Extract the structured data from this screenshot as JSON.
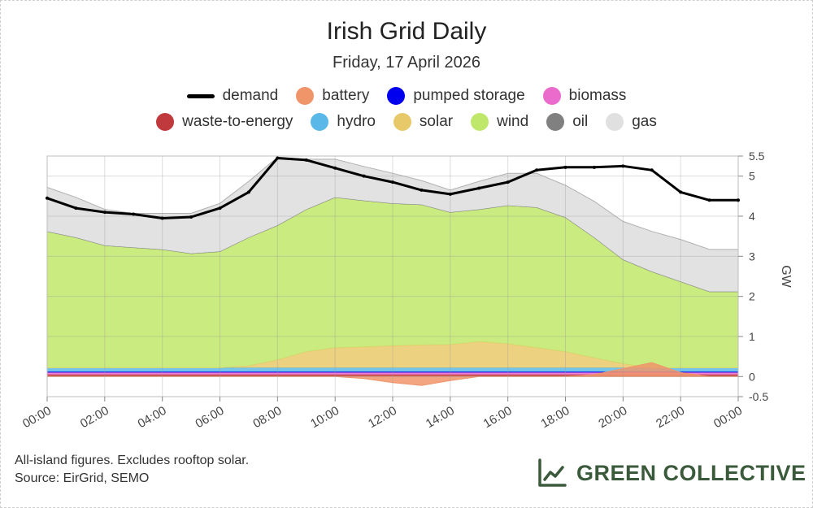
{
  "header": {
    "title": "Irish Grid Daily",
    "subtitle": "Friday, 17 April 2026"
  },
  "legend": [
    {
      "key": "demand",
      "label": "demand",
      "color": "#000000",
      "kind": "line"
    },
    {
      "key": "battery",
      "label": "battery",
      "color": "#f0956a",
      "kind": "dot"
    },
    {
      "key": "pumped",
      "label": "pumped storage",
      "color": "#0000ee",
      "kind": "dot"
    },
    {
      "key": "biomass",
      "label": "biomass",
      "color": "#ea6bcb",
      "kind": "dot"
    },
    {
      "key": "waste",
      "label": "waste-to-energy",
      "color": "#c0393c",
      "kind": "dot"
    },
    {
      "key": "hydro",
      "label": "hydro",
      "color": "#5ab8e8",
      "kind": "dot"
    },
    {
      "key": "solar",
      "label": "solar",
      "color": "#e7c96a",
      "kind": "dot"
    },
    {
      "key": "wind",
      "label": "wind",
      "color": "#bfe86a",
      "kind": "dot"
    },
    {
      "key": "oil",
      "label": "oil",
      "color": "#808080",
      "kind": "dot"
    },
    {
      "key": "gas",
      "label": "gas",
      "color": "#e0e0e0",
      "kind": "dot"
    }
  ],
  "chart_data": {
    "type": "area",
    "x": [
      0,
      1,
      2,
      3,
      4,
      5,
      6,
      7,
      8,
      9,
      10,
      11,
      12,
      13,
      14,
      15,
      16,
      17,
      18,
      19,
      20,
      21,
      22,
      23,
      24
    ],
    "xticks": [
      "00:00",
      "02:00",
      "04:00",
      "06:00",
      "08:00",
      "10:00",
      "12:00",
      "14:00",
      "16:00",
      "18:00",
      "20:00",
      "22:00",
      "00:00"
    ],
    "yticks": [
      -0.5,
      0,
      1,
      2,
      3,
      4,
      5,
      5.5
    ],
    "ylabel": "GW",
    "ylim": [
      -0.5,
      5.5
    ],
    "grid": true,
    "stack_order": [
      "waste",
      "biomass",
      "pumped",
      "hydro",
      "solar",
      "wind",
      "oil",
      "gas"
    ],
    "series": [
      {
        "key": "waste",
        "color": "#c0393c",
        "values": [
          0.05,
          0.05,
          0.05,
          0.05,
          0.05,
          0.05,
          0.05,
          0.05,
          0.05,
          0.05,
          0.05,
          0.05,
          0.05,
          0.05,
          0.05,
          0.05,
          0.05,
          0.05,
          0.05,
          0.05,
          0.05,
          0.05,
          0.05,
          0.05,
          0.05
        ]
      },
      {
        "key": "biomass",
        "color": "#ea6bcb",
        "values": [
          0.05,
          0.05,
          0.05,
          0.05,
          0.05,
          0.05,
          0.05,
          0.05,
          0.05,
          0.05,
          0.05,
          0.05,
          0.05,
          0.05,
          0.05,
          0.05,
          0.05,
          0.05,
          0.05,
          0.05,
          0.05,
          0.05,
          0.05,
          0.05,
          0.05
        ]
      },
      {
        "key": "pumped",
        "color": "#0000ee",
        "values": [
          0.02,
          0.02,
          0.02,
          0.02,
          0.02,
          0.02,
          0.02,
          0.02,
          0.02,
          0.02,
          0.02,
          0.02,
          0.02,
          0.02,
          0.02,
          0.02,
          0.02,
          0.02,
          0.02,
          0.02,
          0.02,
          0.02,
          0.02,
          0.02,
          0.02
        ]
      },
      {
        "key": "hydro",
        "color": "#5ab8e8",
        "values": [
          0.1,
          0.1,
          0.1,
          0.1,
          0.1,
          0.1,
          0.1,
          0.1,
          0.1,
          0.1,
          0.1,
          0.1,
          0.1,
          0.1,
          0.1,
          0.1,
          0.1,
          0.1,
          0.1,
          0.1,
          0.1,
          0.1,
          0.1,
          0.1,
          0.1
        ]
      },
      {
        "key": "solar",
        "color": "#e7c96a",
        "values": [
          0,
          0,
          0,
          0,
          0,
          0,
          0,
          0.05,
          0.2,
          0.4,
          0.5,
          0.52,
          0.55,
          0.57,
          0.58,
          0.65,
          0.6,
          0.5,
          0.4,
          0.25,
          0.1,
          0,
          0,
          0,
          0
        ]
      },
      {
        "key": "wind",
        "color": "#bfe86a",
        "values": [
          3.4,
          3.25,
          3.05,
          3.0,
          2.95,
          2.85,
          2.9,
          3.2,
          3.35,
          3.55,
          3.75,
          3.65,
          3.55,
          3.5,
          3.3,
          3.3,
          3.45,
          3.5,
          3.35,
          3.0,
          2.6,
          2.4,
          2.15,
          1.9,
          1.9
        ]
      },
      {
        "key": "oil",
        "color": "#808080",
        "values": [
          0,
          0,
          0,
          0,
          0,
          0,
          0,
          0,
          0,
          0,
          0,
          0,
          0,
          0,
          0,
          0,
          0,
          0,
          0,
          0,
          0,
          0,
          0,
          0,
          0
        ]
      },
      {
        "key": "gas",
        "color": "#e0e0e0",
        "values": [
          1.1,
          1.0,
          0.9,
          0.85,
          0.9,
          1.0,
          1.2,
          1.4,
          1.7,
          1.25,
          0.95,
          0.85,
          0.75,
          0.6,
          0.55,
          0.7,
          0.8,
          0.85,
          0.8,
          0.9,
          0.95,
          1.0,
          1.05,
          1.05,
          1.05
        ]
      },
      {
        "key": "battery",
        "color": "#f0956a",
        "values": [
          0,
          0,
          0,
          0,
          0,
          0,
          0,
          0,
          0,
          0,
          0,
          -0.05,
          -0.15,
          -0.22,
          -0.1,
          0,
          0,
          0,
          0,
          0.05,
          0.2,
          0.35,
          0.1,
          0,
          0
        ]
      },
      {
        "key": "demand",
        "color": "#000000",
        "values": [
          4.45,
          4.2,
          4.1,
          4.05,
          3.95,
          3.98,
          4.2,
          4.6,
          5.45,
          5.4,
          5.2,
          5.0,
          4.85,
          4.65,
          4.55,
          4.7,
          4.85,
          5.15,
          5.22,
          5.22,
          5.25,
          5.15,
          4.6,
          4.4,
          4.4
        ]
      }
    ]
  },
  "footnote": {
    "line1": "All-island figures. Excludes rooftop solar.",
    "line2": "Source: EirGrid, SEMO"
  },
  "brand": {
    "name": "GREEN COLLECTIVE",
    "color": "#3b5a3c"
  }
}
